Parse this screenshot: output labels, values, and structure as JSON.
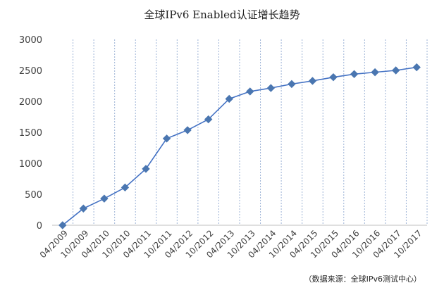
{
  "chart_data": {
    "type": "line",
    "title": "全球IPv6 Enabled认证增长趋势",
    "source_note": "（数据来源：全球IPv6测试中心）",
    "categories": [
      "04/2009",
      "10/2009",
      "04/2010",
      "10/2010",
      "04/2011",
      "10/2011",
      "04/2012",
      "10/2012",
      "04/2013",
      "10/2013",
      "04/2014",
      "10/2014",
      "04/2015",
      "10/2015",
      "04/2016",
      "10/2016",
      "04/2017",
      "10/2017"
    ],
    "series": [
      {
        "values": [
          0,
          270,
          430,
          610,
          910,
          1400,
          1535,
          1710,
          2040,
          2160,
          2215,
          2280,
          2330,
          2390,
          2440,
          2470,
          2500,
          2550
        ]
      }
    ],
    "ylim": [
      0,
      3000
    ],
    "yticks": [
      0,
      500,
      1000,
      1500,
      2000,
      2500,
      3000
    ],
    "grid": "vertical-dashed",
    "line_color": "#4472C4",
    "marker_color": "#4A76B0",
    "marker": "diamond"
  }
}
